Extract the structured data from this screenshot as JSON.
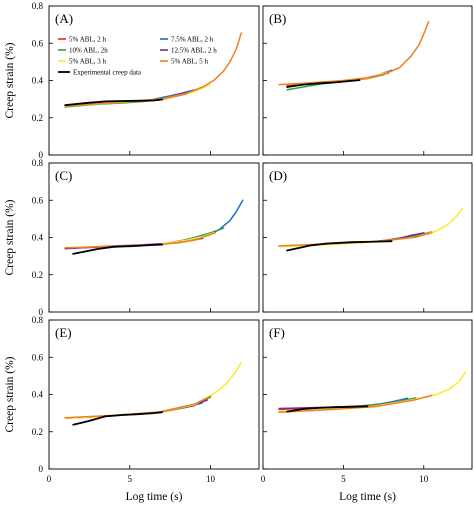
{
  "chart_data": [
    {
      "type": "line",
      "panel_label": "(A)",
      "xlim": [
        0,
        13
      ],
      "ylim": [
        0,
        0.8
      ],
      "ylabel": "Creep strain (%)",
      "xlabel": "",
      "legend": "top",
      "yticks": [
        0,
        0.2,
        0.4,
        0.6,
        0.8
      ],
      "xticks": [
        0,
        5,
        10
      ],
      "show_yticks": true,
      "show_xticks": false,
      "series": [
        {
          "name": "5% ABL, 2 h",
          "color": "#e8281e",
          "x": [
            1.0,
            3.0,
            5.5,
            6.8,
            8.5
          ],
          "y": [
            0.264,
            0.278,
            0.285,
            0.295,
            0.328
          ]
        },
        {
          "name": "7.5% ABL, 2 h",
          "color": "#1f6fc4",
          "x": [
            6.5,
            7.5,
            8.2,
            9.0
          ],
          "y": [
            0.3,
            0.318,
            0.332,
            0.35
          ]
        },
        {
          "name": "10% ABL, 2h",
          "color": "#2ea043",
          "x": [
            1.0,
            3.0,
            5.0,
            6.5,
            8.0
          ],
          "y": [
            0.258,
            0.272,
            0.282,
            0.296,
            0.322
          ]
        },
        {
          "name": "12.5% ABL, 2 h",
          "color": "#7d2a91",
          "x": [
            6.0,
            7.0,
            8.0,
            8.8
          ],
          "y": [
            0.292,
            0.302,
            0.322,
            0.342
          ]
        },
        {
          "name": "5% ABL, 3 h",
          "color": "#f4ee2a",
          "x": [
            1.0,
            4.0,
            7.0,
            9.0,
            10.0
          ],
          "y": [
            0.262,
            0.28,
            0.3,
            0.34,
            0.378
          ]
        },
        {
          "name": "5% ABL, 5 h",
          "color": "#f07f23",
          "x": [
            1.0,
            3.0,
            5.0,
            7.0,
            8.5,
            9.5,
            10.2,
            10.8,
            11.2,
            11.6,
            11.9
          ],
          "y": [
            0.262,
            0.276,
            0.288,
            0.302,
            0.33,
            0.365,
            0.4,
            0.45,
            0.5,
            0.57,
            0.655
          ]
        },
        {
          "name": "Experimental creep data",
          "color": "#000000",
          "x": [
            1.0,
            2.5,
            3.5,
            4.5,
            5.5,
            6.5,
            7.0
          ],
          "y": [
            0.268,
            0.281,
            0.288,
            0.29,
            0.291,
            0.293,
            0.298
          ]
        }
      ]
    },
    {
      "type": "line",
      "panel_label": "(B)",
      "xlim": [
        0,
        13
      ],
      "ylim": [
        0,
        0.8
      ],
      "ylabel": "",
      "xlabel": "",
      "yticks": [
        0,
        0.2,
        0.4,
        0.6,
        0.8
      ],
      "xticks": [
        0,
        5,
        10
      ],
      "show_yticks": false,
      "show_xticks": false,
      "series": [
        {
          "name": "5% ABL, 2 h",
          "color": "#e8281e",
          "x": [
            1.5,
            4.5,
            6.5,
            7.5
          ],
          "y": [
            0.372,
            0.392,
            0.41,
            0.432
          ]
        },
        {
          "name": "7.5% ABL, 2 h",
          "color": "#1f6fc4",
          "x": [
            6.0,
            7.0,
            7.8
          ],
          "y": [
            0.405,
            0.425,
            0.44
          ]
        },
        {
          "name": "10% ABL, 2h",
          "color": "#2ea043",
          "x": [
            1.5,
            3.5,
            5.5,
            7.5
          ],
          "y": [
            0.35,
            0.38,
            0.4,
            0.43
          ]
        },
        {
          "name": "12.5% ABL, 2 h",
          "color": "#7d2a91",
          "x": [
            6.5,
            7.2,
            8.0
          ],
          "y": [
            0.412,
            0.43,
            0.455
          ]
        },
        {
          "name": "5% ABL, 3 h",
          "color": "#f4ee2a",
          "x": [
            1.5,
            4.5,
            6.5,
            8.0
          ],
          "y": [
            0.38,
            0.395,
            0.412,
            0.45
          ]
        },
        {
          "name": "5% ABL, 5 h",
          "color": "#f07f23",
          "x": [
            1.0,
            3.0,
            5.0,
            6.5,
            7.5,
            8.5,
            9.2,
            9.7,
            10.0,
            10.3
          ],
          "y": [
            0.378,
            0.388,
            0.4,
            0.415,
            0.432,
            0.47,
            0.53,
            0.59,
            0.65,
            0.715
          ]
        },
        {
          "name": "Experimental creep data",
          "color": "#000000",
          "x": [
            1.5,
            2.5,
            3.5,
            4.5,
            5.5,
            6.0
          ],
          "y": [
            0.365,
            0.378,
            0.385,
            0.39,
            0.398,
            0.402
          ]
        }
      ]
    },
    {
      "type": "line",
      "panel_label": "(C)",
      "xlim": [
        0,
        13
      ],
      "ylim": [
        0,
        0.8
      ],
      "ylabel": "Creep strain (%)",
      "xlabel": "",
      "yticks": [
        0,
        0.2,
        0.4,
        0.6,
        0.8
      ],
      "xticks": [
        0,
        5,
        10
      ],
      "show_yticks": true,
      "show_xticks": false,
      "series": [
        {
          "name": "5% ABL, 2 h",
          "color": "#e8281e",
          "x": [
            1.0,
            4.0,
            7.0,
            9.0
          ],
          "y": [
            0.342,
            0.35,
            0.365,
            0.395
          ]
        },
        {
          "name": "7.5% ABL, 2 h",
          "color": "#1f6fc4",
          "x": [
            8.5,
            9.5,
            10.5,
            11.2,
            11.6,
            12.0
          ],
          "y": [
            0.38,
            0.405,
            0.44,
            0.49,
            0.54,
            0.6
          ]
        },
        {
          "name": "10% ABL, 2h",
          "color": "#2ea043",
          "x": [
            8.0,
            9.0,
            10.0,
            10.8
          ],
          "y": [
            0.378,
            0.4,
            0.425,
            0.45
          ]
        },
        {
          "name": "12.5% ABL, 2 h",
          "color": "#7d2a91",
          "x": [
            1.0,
            3.0,
            6.0,
            8.0,
            9.5
          ],
          "y": [
            0.34,
            0.35,
            0.362,
            0.372,
            0.395
          ]
        },
        {
          "name": "5% ABL, 3 h",
          "color": "#f4ee2a",
          "x": [
            7.0,
            8.5,
            9.5,
            10.2
          ],
          "y": [
            0.365,
            0.385,
            0.405,
            0.425
          ]
        },
        {
          "name": "5% ABL, 5 h",
          "color": "#f07f23",
          "x": [
            1.0,
            4.0,
            7.0,
            9.0,
            10.3
          ],
          "y": [
            0.345,
            0.352,
            0.362,
            0.385,
            0.425
          ]
        },
        {
          "name": "Experimental creep data",
          "color": "#000000",
          "x": [
            1.5,
            3.0,
            4.0,
            5.5,
            6.5,
            7.0
          ],
          "y": [
            0.312,
            0.338,
            0.35,
            0.355,
            0.36,
            0.362
          ]
        }
      ]
    },
    {
      "type": "line",
      "panel_label": "(D)",
      "xlim": [
        0,
        13
      ],
      "ylim": [
        0,
        0.8
      ],
      "ylabel": "",
      "xlabel": "",
      "yticks": [
        0,
        0.2,
        0.4,
        0.6,
        0.8
      ],
      "xticks": [
        0,
        5,
        10
      ],
      "show_yticks": false,
      "show_xticks": false,
      "series": [
        {
          "name": "5% ABL, 2 h",
          "color": "#e8281e",
          "x": [
            1.0,
            4.0,
            7.0,
            9.5
          ],
          "y": [
            0.352,
            0.365,
            0.378,
            0.408
          ]
        },
        {
          "name": "7.5% ABL, 2 h",
          "color": "#1f6fc4",
          "x": [
            8.0,
            9.0,
            10.0
          ],
          "y": [
            0.39,
            0.405,
            0.42
          ]
        },
        {
          "name": "10% ABL, 2h",
          "color": "#2ea043",
          "x": [
            6.0,
            7.5,
            9.0,
            10.5
          ],
          "y": [
            0.372,
            0.382,
            0.398,
            0.43
          ]
        },
        {
          "name": "12.5% ABL, 2 h",
          "color": "#7d2a91",
          "x": [
            8.5,
            9.2,
            10.0
          ],
          "y": [
            0.395,
            0.412,
            0.425
          ]
        },
        {
          "name": "5% ABL, 3 h",
          "color": "#f4ee2a",
          "x": [
            1.0,
            4.0,
            7.0,
            9.5,
            10.8,
            11.5,
            12.0,
            12.4
          ],
          "y": [
            0.35,
            0.362,
            0.376,
            0.402,
            0.435,
            0.47,
            0.51,
            0.555
          ]
        },
        {
          "name": "5% ABL, 5 h",
          "color": "#f07f23",
          "x": [
            1.0,
            4.0,
            7.0,
            9.5,
            10.5
          ],
          "y": [
            0.355,
            0.365,
            0.378,
            0.402,
            0.425
          ]
        },
        {
          "name": "Experimental creep data",
          "color": "#000000",
          "x": [
            1.5,
            3.0,
            4.0,
            5.5,
            7.0,
            8.0
          ],
          "y": [
            0.33,
            0.358,
            0.368,
            0.375,
            0.378,
            0.38
          ]
        }
      ]
    },
    {
      "type": "line",
      "panel_label": "(E)",
      "xlim": [
        0,
        13
      ],
      "ylim": [
        0,
        0.8
      ],
      "ylabel": "Creep strain (%)",
      "xlabel": "Log time (s)",
      "yticks": [
        0,
        0.2,
        0.4,
        0.6,
        0.8
      ],
      "xticks": [
        0,
        5,
        10
      ],
      "show_yticks": true,
      "show_xticks": true,
      "series": [
        {
          "name": "5% ABL, 2 h",
          "color": "#e8281e",
          "x": [
            1.0,
            4.0,
            7.0,
            9.0
          ],
          "y": [
            0.272,
            0.285,
            0.305,
            0.34
          ]
        },
        {
          "name": "7.5% ABL, 2 h",
          "color": "#1f6fc4",
          "x": [
            7.5,
            8.5,
            9.5
          ],
          "y": [
            0.315,
            0.332,
            0.355
          ]
        },
        {
          "name": "10% ABL, 2h",
          "color": "#2ea043",
          "x": [
            7.0,
            8.0,
            9.0,
            10.0
          ],
          "y": [
            0.31,
            0.328,
            0.348,
            0.385
          ]
        },
        {
          "name": "12.5% ABL, 2 h",
          "color": "#7d2a91",
          "x": [
            8.0,
            9.0,
            9.8
          ],
          "y": [
            0.325,
            0.345,
            0.37
          ]
        },
        {
          "name": "5% ABL, 3 h",
          "color": "#f4ee2a",
          "x": [
            1.0,
            4.0,
            7.0,
            9.0,
            10.3,
            11.0,
            11.5,
            11.9
          ],
          "y": [
            0.272,
            0.285,
            0.305,
            0.345,
            0.41,
            0.46,
            0.515,
            0.57
          ]
        },
        {
          "name": "5% ABL, 5 h",
          "color": "#f07f23",
          "x": [
            1.0,
            4.0,
            7.0,
            9.0,
            10.0
          ],
          "y": [
            0.275,
            0.288,
            0.308,
            0.348,
            0.39
          ]
        },
        {
          "name": "Experimental creep data",
          "color": "#000000",
          "x": [
            1.5,
            2.5,
            3.5,
            4.5,
            5.5,
            6.5,
            7.0
          ],
          "y": [
            0.238,
            0.258,
            0.283,
            0.29,
            0.294,
            0.3,
            0.305
          ]
        }
      ]
    },
    {
      "type": "line",
      "panel_label": "(F)",
      "xlim": [
        0,
        13
      ],
      "ylim": [
        0,
        0.8
      ],
      "ylabel": "",
      "xlabel": "Log time (s)",
      "yticks": [
        0,
        0.2,
        0.4,
        0.6,
        0.8
      ],
      "xticks": [
        0,
        5,
        10
      ],
      "show_yticks": false,
      "show_xticks": true,
      "series": [
        {
          "name": "5% ABL, 2 h",
          "color": "#e8281e",
          "x": [
            1.0,
            4.0,
            7.0,
            9.0
          ],
          "y": [
            0.32,
            0.33,
            0.342,
            0.372
          ]
        },
        {
          "name": "7.5% ABL, 2 h",
          "color": "#1f6fc4",
          "x": [
            7.0,
            8.0,
            9.0
          ],
          "y": [
            0.345,
            0.36,
            0.38
          ]
        },
        {
          "name": "10% ABL, 2h",
          "color": "#2ea043",
          "x": [
            5.0,
            6.5,
            8.0,
            9.5
          ],
          "y": [
            0.332,
            0.342,
            0.355,
            0.382
          ]
        },
        {
          "name": "12.5% ABL, 2 h",
          "color": "#7d2a91",
          "x": [
            1.0,
            4.0,
            7.0,
            9.0
          ],
          "y": [
            0.325,
            0.332,
            0.34,
            0.368
          ]
        },
        {
          "name": "5% ABL, 3 h",
          "color": "#f4ee2a",
          "x": [
            1.0,
            4.0,
            7.0,
            9.5,
            10.8,
            11.6,
            12.2,
            12.6
          ],
          "y": [
            0.31,
            0.32,
            0.338,
            0.375,
            0.4,
            0.43,
            0.47,
            0.52
          ]
        },
        {
          "name": "5% ABL, 5 h",
          "color": "#f07f23",
          "x": [
            1.0,
            4.0,
            7.0,
            9.5,
            10.5
          ],
          "y": [
            0.305,
            0.318,
            0.335,
            0.372,
            0.395
          ]
        },
        {
          "name": "Experimental creep data",
          "color": "#000000",
          "x": [
            1.5,
            2.5,
            3.5,
            4.5,
            5.5,
            6.5
          ],
          "y": [
            0.308,
            0.322,
            0.328,
            0.332,
            0.334,
            0.336
          ]
        }
      ]
    }
  ]
}
